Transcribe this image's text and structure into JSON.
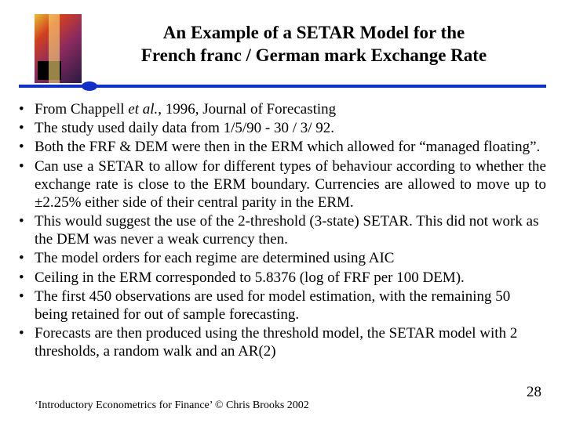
{
  "title_line1": "An Example of a SETAR Model for the",
  "title_line2": "French franc / German mark Exchange Rate",
  "bullets": [
    {
      "pre": "From Chappell ",
      "ital": "et al.",
      "post": ", 1996, Journal of Forecasting",
      "justify": false
    },
    {
      "text": "The study used daily data from 1/5/90 - 30 / 3/ 92.",
      "justify": false
    },
    {
      "text": "Both the FRF & DEM were then in the ERM which allowed for “managed floating”.",
      "justify": false
    },
    {
      "text": "Can use a SETAR to allow for different types of behaviour according to whether the exchange rate is close to the ERM boundary. Currencies are allowed to move up to ±2.25% either side of their central parity in the ERM.",
      "justify": true
    },
    {
      "text": "This would suggest the use of the 2-threshold (3-state) SETAR. This did not work as the DEM was never a weak currency then.",
      "justify": false
    },
    {
      "text": "The model orders for each regime are determined using AIC",
      "justify": false
    },
    {
      "text": "Ceiling in the ERM corresponded to 5.8376 (log of FRF per 100 DEM).",
      "justify": false
    },
    {
      "text": "The first 450 observations are used for model estimation, with the remaining 50 being retained for out of sample forecasting.",
      "justify": false
    },
    {
      "text": "Forecasts are then produced using the threshold model, the SETAR model with 2 thresholds, a random walk and an AR(2)",
      "justify": false
    }
  ],
  "footer": "‘Introductory Econometrics for Finance’ © Chris Brooks 2002",
  "page_number": "28",
  "colors": {
    "divider": "#1030c8",
    "background": "#ffffff",
    "text": "#000000"
  }
}
